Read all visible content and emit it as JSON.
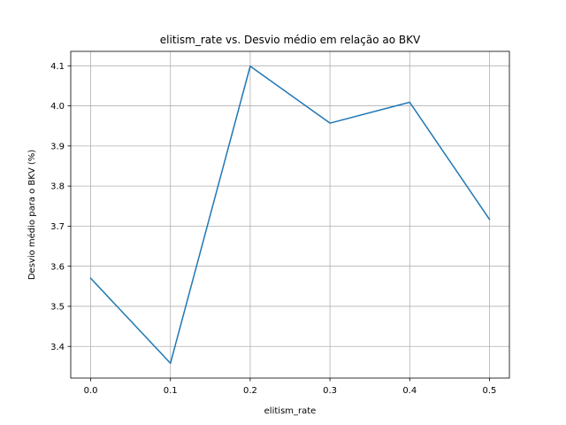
{
  "chart_data": {
    "type": "line",
    "title": "elitism_rate vs. Desvio médio em relação ao BKV",
    "xlabel": "elitism_rate",
    "ylabel": "Desvio médio para o BKV (%)",
    "x": [
      0.0,
      0.1,
      0.2,
      0.3,
      0.4,
      0.5
    ],
    "series": [
      {
        "values": [
          3.57,
          3.358,
          4.099,
          3.957,
          4.009,
          3.717
        ]
      }
    ],
    "xlim": [
      -0.025,
      0.525
    ],
    "ylim": [
      3.321,
      4.136
    ],
    "x_ticks": [
      "0.0",
      "0.1",
      "0.2",
      "0.3",
      "0.4",
      "0.5"
    ],
    "y_ticks": [
      "3.4",
      "3.5",
      "3.6",
      "3.7",
      "3.8",
      "3.9",
      "4.0",
      "4.1"
    ],
    "grid": true,
    "line_color": "#1f77b4",
    "grid_color": "#b0b0b0"
  }
}
